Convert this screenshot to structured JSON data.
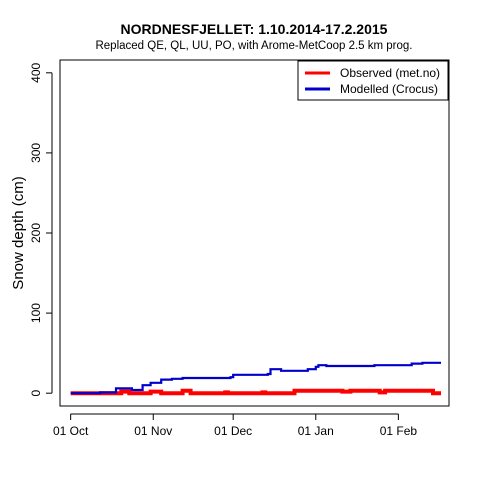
{
  "chart_data": {
    "type": "line",
    "title": "NORDNESFJELLET: 1.10.2014-17.2.2015",
    "subtitle": "Replaced QE, QL, UU, PO,  with Arome-MetCoop 2.5 km prog.",
    "xlabel": "",
    "ylabel": "Snow depth (cm)",
    "x_range": [
      "2014-09-27",
      "2015-02-20"
    ],
    "ylim": [
      -16,
      416
    ],
    "y_ticks": [
      0,
      100,
      200,
      300,
      400
    ],
    "x_ticks": [
      {
        "date": "2014-10-01",
        "label": "01 Oct"
      },
      {
        "date": "2014-11-01",
        "label": "01 Nov"
      },
      {
        "date": "2014-12-01",
        "label": "01 Dec"
      },
      {
        "date": "2015-01-01",
        "label": "01 Jan"
      },
      {
        "date": "2015-02-01",
        "label": "01 Feb"
      }
    ],
    "grid": false,
    "legend_position": "top-right",
    "series": [
      {
        "name": "Observed (met.no)",
        "color": "#ff0000",
        "step": true,
        "points": [
          [
            "2014-10-01",
            0
          ],
          [
            "2014-10-15",
            0
          ],
          [
            "2014-10-20",
            2
          ],
          [
            "2014-10-23",
            0
          ],
          [
            "2014-10-31",
            2
          ],
          [
            "2014-11-04",
            0
          ],
          [
            "2014-11-12",
            3
          ],
          [
            "2014-11-15",
            0
          ],
          [
            "2014-11-28",
            1
          ],
          [
            "2014-11-29",
            0
          ],
          [
            "2014-12-12",
            1
          ],
          [
            "2014-12-13",
            0
          ],
          [
            "2014-12-24",
            3
          ],
          [
            "2015-01-11",
            2
          ],
          [
            "2015-01-14",
            3
          ],
          [
            "2015-01-25",
            1
          ],
          [
            "2015-01-27",
            3
          ],
          [
            "2015-02-14",
            0
          ],
          [
            "2015-02-17",
            0
          ]
        ]
      },
      {
        "name": "Modelled (Crocus)",
        "color": "#0000cc",
        "step": true,
        "points": [
          [
            "2014-10-01",
            0
          ],
          [
            "2014-10-12",
            1
          ],
          [
            "2014-10-18",
            6
          ],
          [
            "2014-10-24",
            4
          ],
          [
            "2014-10-28",
            10
          ],
          [
            "2014-10-31",
            13
          ],
          [
            "2014-11-04",
            17
          ],
          [
            "2014-11-08",
            18
          ],
          [
            "2014-11-12",
            19
          ],
          [
            "2014-11-30",
            20
          ],
          [
            "2014-12-01",
            23
          ],
          [
            "2014-12-14",
            24
          ],
          [
            "2014-12-15",
            30
          ],
          [
            "2014-12-19",
            28
          ],
          [
            "2014-12-29",
            30
          ],
          [
            "2015-01-01",
            33
          ],
          [
            "2015-01-02",
            35
          ],
          [
            "2015-01-05",
            34
          ],
          [
            "2015-01-23",
            35
          ],
          [
            "2015-02-06",
            37
          ],
          [
            "2015-02-10",
            38
          ],
          [
            "2015-02-17",
            38
          ]
        ]
      }
    ]
  }
}
